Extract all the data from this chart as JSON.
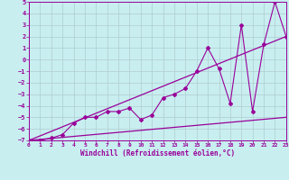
{
  "xlabel": "Windchill (Refroidissement éolien,°C)",
  "bg_color": "#c8eef0",
  "line_color": "#990099",
  "grid_color": "#b0ccd0",
  "xlim": [
    0,
    23
  ],
  "ylim": [
    -7,
    5
  ],
  "xticks": [
    0,
    1,
    2,
    3,
    4,
    5,
    6,
    7,
    8,
    9,
    10,
    11,
    12,
    13,
    14,
    15,
    16,
    17,
    18,
    19,
    20,
    21,
    22,
    23
  ],
  "yticks": [
    -7,
    -6,
    -5,
    -4,
    -3,
    -2,
    -1,
    0,
    1,
    2,
    3,
    4,
    5
  ],
  "lower_line": [
    [
      0,
      -7
    ],
    [
      23,
      -5
    ]
  ],
  "upper_line": [
    [
      0,
      -7
    ],
    [
      23,
      2
    ]
  ],
  "data_line": [
    [
      0,
      -7
    ],
    [
      1,
      -7
    ],
    [
      2,
      -6.8
    ],
    [
      3,
      -6.5
    ],
    [
      4,
      -5.5
    ],
    [
      5,
      -5
    ],
    [
      6,
      -5
    ],
    [
      7,
      -4.5
    ],
    [
      8,
      -4.5
    ],
    [
      9,
      -4.2
    ],
    [
      10,
      -5.2
    ],
    [
      11,
      -4.8
    ],
    [
      12,
      -3.3
    ],
    [
      13,
      -3.0
    ],
    [
      14,
      -2.5
    ],
    [
      15,
      -1.0
    ],
    [
      16,
      1.0
    ],
    [
      17,
      -0.8
    ],
    [
      18,
      -3.8
    ],
    [
      19,
      3.0
    ],
    [
      20,
      -4.5
    ],
    [
      21,
      1.3
    ],
    [
      22,
      5.0
    ],
    [
      23,
      2.0
    ]
  ]
}
